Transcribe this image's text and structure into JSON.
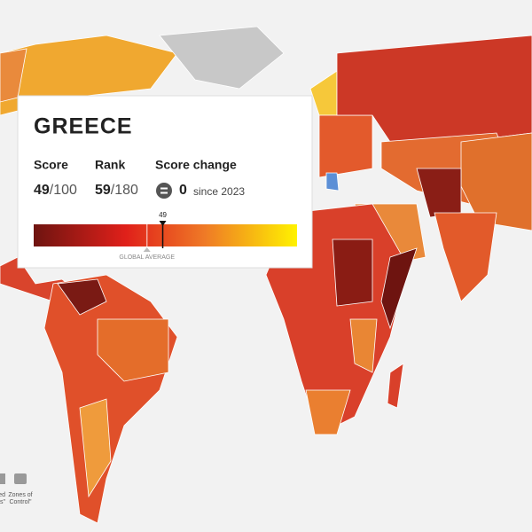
{
  "tooltip": {
    "country": "GREECE",
    "score_label": "Score",
    "score": 49,
    "score_max": "/100",
    "rank_label": "Rank",
    "rank": 59,
    "rank_total": "/180",
    "change_label": "Score change",
    "change": 0,
    "change_since": "since 2023",
    "average_label": "GLOBAL AVERAGE",
    "scale": [
      0,
      100
    ],
    "global_average": 43
  },
  "legend": {
    "items": [
      [
        "ed",
        "ies\""
      ],
      [
        "Zones of",
        "Control\""
      ]
    ]
  }
}
